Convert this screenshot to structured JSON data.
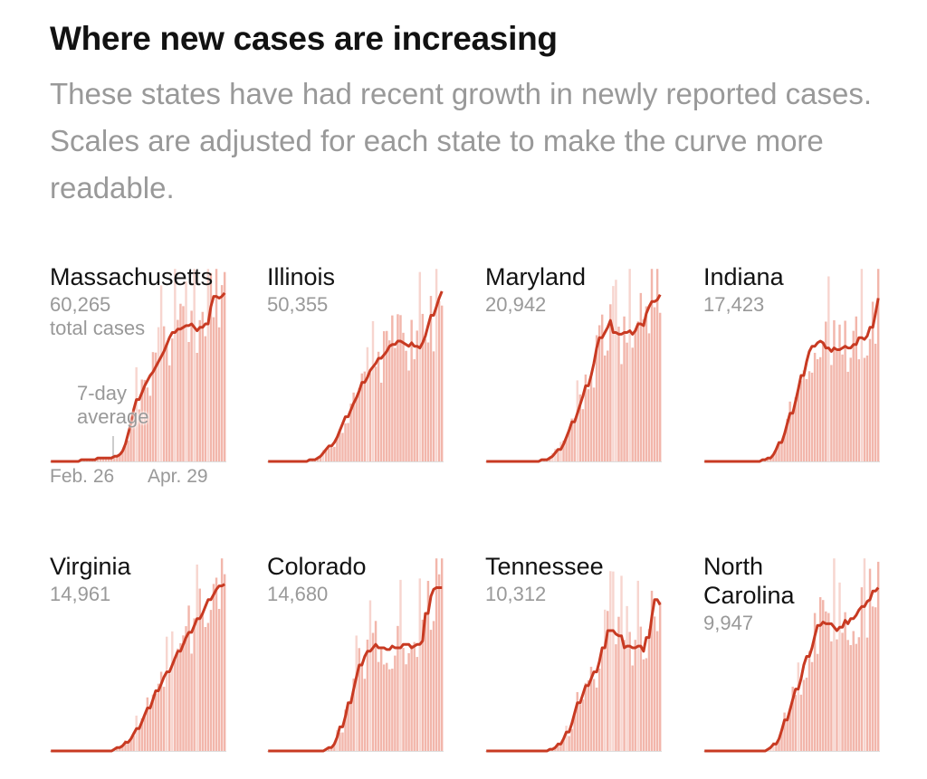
{
  "header": {
    "title": "Where new cases are increasing",
    "subtitle": "These states have had recent growth in newly reported cases. Scales are adjusted for each state to make the curve more readable."
  },
  "colors": {
    "line": "#c83a22",
    "bar": "#f2b6ab",
    "bar_light": "#f7d5cf"
  },
  "annotations": {
    "total_label": "total cases",
    "avg_label_1": "7-day",
    "avg_label_2": "average",
    "x_start": "Feb. 26",
    "x_end": "Apr. 29"
  },
  "chart_data": [
    {
      "type": "bar+line",
      "state": "Massachusetts",
      "total": "60,265",
      "x_range": [
        "Feb. 26",
        "Apr. 29"
      ],
      "avg": [
        0,
        0,
        0,
        0,
        0,
        0,
        0,
        0,
        0,
        0,
        0.01,
        0.01,
        0.01,
        0.01,
        0.01,
        0.01,
        0.02,
        0.02,
        0.02,
        0.02,
        0.02,
        0.03,
        0.03,
        0.04,
        0.06,
        0.1,
        0.16,
        0.22,
        0.3,
        0.36,
        0.4,
        0.44,
        0.47,
        0.5,
        0.52,
        0.55,
        0.58,
        0.61,
        0.64,
        0.68,
        0.72,
        0.75,
        0.77,
        0.77,
        0.78,
        0.79,
        0.79,
        0.8,
        0.78,
        0.76,
        0.78,
        0.78,
        0.8,
        0.9,
        0.96,
        0.96,
        0.95,
        0.96,
        0.98
      ]
    },
    {
      "type": "bar+line",
      "state": "Illinois",
      "total": "50,355",
      "avg": [
        0,
        0,
        0,
        0,
        0,
        0,
        0,
        0,
        0,
        0,
        0,
        0,
        0,
        0.01,
        0.01,
        0.02,
        0.03,
        0.05,
        0.07,
        0.09,
        0.11,
        0.14,
        0.18,
        0.22,
        0.26,
        0.3,
        0.34,
        0.37,
        0.41,
        0.46,
        0.49,
        0.53,
        0.55,
        0.57,
        0.6,
        0.62,
        0.64,
        0.67,
        0.68,
        0.68,
        0.7,
        0.69,
        0.68,
        0.67,
        0.69,
        0.67,
        0.66,
        0.69,
        0.73,
        0.79,
        0.85,
        0.9,
        0.95,
        0.99
      ]
    },
    {
      "type": "bar+line",
      "state": "Maryland",
      "total": "20,942",
      "avg": [
        0,
        0,
        0,
        0,
        0,
        0,
        0,
        0,
        0,
        0,
        0,
        0,
        0,
        0,
        0,
        0,
        0.01,
        0.01,
        0.02,
        0.03,
        0.05,
        0.07,
        0.1,
        0.14,
        0.18,
        0.23,
        0.28,
        0.33,
        0.38,
        0.44,
        0.5,
        0.57,
        0.66,
        0.72,
        0.75,
        0.78,
        0.82,
        0.75,
        0.74,
        0.74,
        0.75,
        0.76,
        0.74,
        0.76,
        0.8,
        0.79,
        0.86,
        0.9,
        0.93,
        0.94,
        0.97
      ]
    },
    {
      "type": "bar+line",
      "state": "Indiana",
      "total": "17,423",
      "avg": [
        0,
        0,
        0,
        0,
        0,
        0,
        0,
        0,
        0,
        0,
        0,
        0,
        0,
        0,
        0,
        0,
        0.01,
        0.01,
        0.02,
        0.04,
        0.07,
        0.11,
        0.16,
        0.22,
        0.28,
        0.35,
        0.42,
        0.5,
        0.58,
        0.64,
        0.67,
        0.69,
        0.7,
        0.69,
        0.66,
        0.64,
        0.66,
        0.65,
        0.66,
        0.67,
        0.66,
        0.68,
        0.68,
        0.72,
        0.71,
        0.73,
        0.78,
        0.86,
        0.95
      ]
    },
    {
      "type": "bar+line",
      "state": "Virginia",
      "total": "14,961",
      "avg": [
        0,
        0,
        0,
        0,
        0,
        0,
        0,
        0,
        0,
        0,
        0,
        0,
        0,
        0,
        0,
        0,
        0,
        0.01,
        0.02,
        0.03,
        0.05,
        0.07,
        0.1,
        0.13,
        0.17,
        0.21,
        0.25,
        0.3,
        0.35,
        0.39,
        0.43,
        0.46,
        0.5,
        0.54,
        0.58,
        0.62,
        0.66,
        0.69,
        0.73,
        0.77,
        0.8,
        0.84,
        0.88,
        0.91,
        0.94,
        0.96,
        0.97
      ]
    },
    {
      "type": "bar+line",
      "state": "Colorado",
      "total": "14,680",
      "avg": [
        0,
        0,
        0,
        0,
        0,
        0,
        0,
        0,
        0,
        0,
        0,
        0,
        0,
        0,
        0,
        0.01,
        0.02,
        0.04,
        0.08,
        0.14,
        0.2,
        0.28,
        0.36,
        0.43,
        0.5,
        0.55,
        0.58,
        0.6,
        0.62,
        0.6,
        0.6,
        0.59,
        0.61,
        0.6,
        0.6,
        0.62,
        0.62,
        0.6,
        0.61,
        0.62,
        0.64,
        0.8,
        0.9,
        0.94,
        0.95,
        0.95
      ]
    },
    {
      "type": "bar+line",
      "state": "Tennessee",
      "total": "10,312",
      "avg": [
        0,
        0,
        0,
        0,
        0,
        0,
        0,
        0,
        0,
        0,
        0,
        0,
        0,
        0,
        0,
        0,
        0.01,
        0.02,
        0.04,
        0.07,
        0.11,
        0.16,
        0.22,
        0.28,
        0.33,
        0.38,
        0.42,
        0.46,
        0.52,
        0.6,
        0.7,
        0.7,
        0.68,
        0.67,
        0.6,
        0.61,
        0.6,
        0.6,
        0.61,
        0.58,
        0.66,
        0.78,
        0.88,
        0.85
      ]
    },
    {
      "type": "bar+line",
      "state": "North Carolina",
      "total": "9,947",
      "avg": [
        0,
        0,
        0,
        0,
        0,
        0,
        0,
        0,
        0,
        0,
        0,
        0,
        0,
        0,
        0,
        0,
        0,
        0.01,
        0.02,
        0.04,
        0.07,
        0.12,
        0.18,
        0.24,
        0.3,
        0.36,
        0.42,
        0.5,
        0.55,
        0.6,
        0.67,
        0.73,
        0.75,
        0.74,
        0.74,
        0.72,
        0.7,
        0.72,
        0.76,
        0.74,
        0.77,
        0.79,
        0.82,
        0.84,
        0.87,
        0.88,
        0.93,
        0.95
      ]
    }
  ]
}
